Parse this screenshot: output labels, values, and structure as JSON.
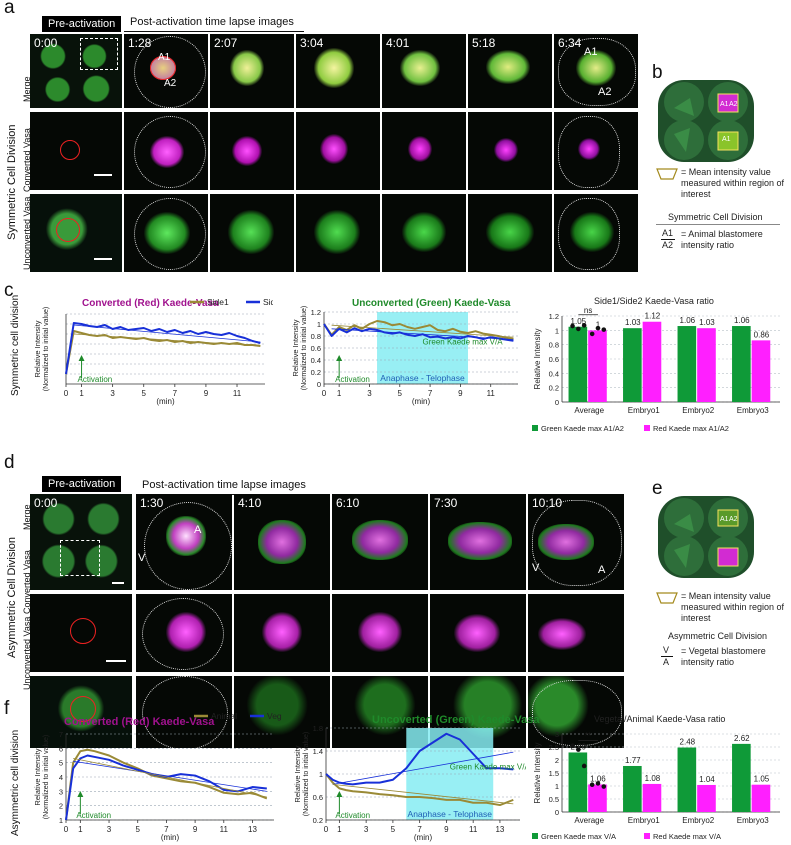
{
  "panel_letters": {
    "a": "a",
    "b": "b",
    "c": "c",
    "d": "d",
    "e": "e",
    "f": "f"
  },
  "colors": {
    "green": "#3dd43d",
    "magenta": "#e01fe0",
    "olive": "#9a8a36",
    "blue": "#1830d8",
    "cyan_band": "#86ecf2",
    "bar_green": "#0f9a38",
    "bar_magenta": "#ff1fff"
  },
  "panel_a": {
    "group_label": "Symmetric Cell Division",
    "pre_activation": "Pre-activation",
    "post_header": "Post-activation time lapse images",
    "row_labels": [
      "Merge",
      "Converted Vasa",
      "Unconverted Vasa"
    ],
    "timestamps": [
      "0:00",
      "1:28",
      "2:07",
      "3:04",
      "4:01",
      "5:18",
      "6:34"
    ],
    "markers": {
      "a1": "A1",
      "a2": "A2"
    }
  },
  "panel_b": {
    "labels": {
      "a1": "A1",
      "a2": "A2"
    },
    "legend_text": "= Mean intensity value measured within region of  interest",
    "division_title": "Symmetric Cell Division",
    "ratio_num": "A1",
    "ratio_den": "A2",
    "ratio_text": "= Animal blastomere intensity ratio"
  },
  "panel_d": {
    "group_label": "Asymmetric Cell Division",
    "pre_activation": "Pre-activation",
    "post_header": "Post-activation time lapse images",
    "row_labels": [
      "Merge",
      "Converted Vasa",
      "Unconverted Vasa"
    ],
    "timestamps": [
      "0:00",
      "1:30",
      "4:10",
      "6:10",
      "7:30",
      "10:10"
    ],
    "markers": {
      "a": "A",
      "v": "V"
    }
  },
  "panel_e": {
    "labels": {
      "a1": "A1",
      "a2": "A2"
    },
    "legend_text": "= Mean intensity value measured within region of  interest",
    "division_title": "Asymmetric Cell Division",
    "ratio_num": "V",
    "ratio_den": "A",
    "ratio_text": "= Vegetal blastomere intensity ratio"
  },
  "panel_c_side_label": "Symmetric cell division",
  "panel_f_side_label": "Asymmetric cell division",
  "chart_data": [
    {
      "id": "c_red",
      "type": "line",
      "title": "Converted (Red) Kaede-Vasa",
      "ylabel": "Relative Intensity (Normalized to initial value)",
      "xlabel": "(min)",
      "xticks": [
        0,
        1,
        3,
        5,
        7,
        9,
        11
      ],
      "xlim": [
        0,
        12.8
      ],
      "ylim": [
        0,
        7
      ],
      "yticks": [],
      "annotation": "Activation",
      "annotation_x": 1,
      "legend": [
        "Side1",
        "Side2"
      ],
      "series": [
        {
          "name": "Side1",
          "color": "olive",
          "x": [
            0,
            0.5,
            1,
            1.5,
            2,
            2.5,
            3,
            3.5,
            4,
            4.5,
            5,
            5.5,
            6,
            6.5,
            7,
            7.5,
            8,
            8.5,
            9,
            9.5,
            10,
            10.5,
            11,
            11.5,
            12,
            12.5
          ],
          "y": [
            1,
            5.3,
            5.1,
            4.9,
            4.8,
            4.9,
            4.6,
            4.7,
            4.6,
            4.5,
            4.6,
            4.4,
            4.3,
            4.4,
            4.2,
            4.3,
            4.1,
            4.2,
            4.1,
            4.0,
            4.1,
            4.0,
            4.1,
            3.9,
            3.9,
            3.8
          ]
        },
        {
          "name": "Side2",
          "color": "blue",
          "x": [
            0,
            0.5,
            1,
            1.5,
            2,
            2.5,
            3,
            3.5,
            4,
            4.5,
            5,
            5.5,
            6,
            6.5,
            7,
            7.5,
            8,
            8.5,
            9,
            9.5,
            10,
            10.5,
            11,
            11.5,
            12,
            12.5
          ],
          "y": [
            1,
            6.1,
            6.0,
            5.8,
            5.7,
            5.9,
            5.5,
            5.7,
            5.4,
            5.5,
            5.6,
            5.3,
            5.5,
            5.2,
            5.4,
            5.1,
            5.3,
            5.0,
            5.2,
            5.0,
            4.9,
            5.1,
            4.8,
            4.6,
            4.3,
            4.1
          ]
        },
        {
          "name": "",
          "color": "blue",
          "fit": true,
          "x": [
            0.5,
            12.5
          ],
          "y": [
            5.9,
            4.2
          ]
        },
        {
          "name": "",
          "color": "olive",
          "fit": true,
          "x": [
            0.5,
            12.5
          ],
          "y": [
            5.0,
            3.8
          ]
        }
      ]
    },
    {
      "id": "c_green",
      "type": "line",
      "title": "Unconverted (Green) Kaede-Vasa",
      "ylabel": "Relative Intensity (Normalized to initial value)",
      "xlabel": "(min)",
      "xticks": [
        0,
        1,
        3,
        5,
        7,
        9,
        11
      ],
      "xlim": [
        0,
        12.8
      ],
      "ylim": [
        0,
        1.2
      ],
      "yticks": [
        0,
        0.2,
        0.4,
        0.6,
        0.8,
        1,
        1.2
      ],
      "band": [
        3.5,
        9.5
      ],
      "band_label": "Anaphase - Telophase",
      "arrow_label": "Green Kaede max V/A",
      "annotation": "Activation",
      "annotation_x": 1,
      "series": [
        {
          "name": "",
          "color": "olive",
          "x": [
            0,
            0.5,
            1,
            1.5,
            2,
            2.5,
            3,
            3.5,
            4,
            4.5,
            5,
            5.5,
            6,
            6.5,
            7,
            7.5,
            8,
            8.5,
            9,
            9.5,
            10,
            10.5,
            11,
            11.5,
            12,
            12.5
          ],
          "y": [
            1,
            0.82,
            0.95,
            0.9,
            0.98,
            0.92,
            1.0,
            1.05,
            1.03,
            0.98,
            1.0,
            0.95,
            0.92,
            0.95,
            0.98,
            0.9,
            0.88,
            0.92,
            0.87,
            0.85,
            0.88,
            0.84,
            0.82,
            0.8,
            0.77,
            0.75
          ]
        },
        {
          "name": "",
          "color": "blue",
          "x": [
            0,
            0.5,
            1,
            1.5,
            2,
            2.5,
            3,
            3.5,
            4,
            4.5,
            5,
            5.5,
            6,
            6.5,
            7,
            7.5,
            8,
            8.5,
            9,
            9.5,
            10,
            10.5,
            11,
            11.5,
            12,
            12.5
          ],
          "y": [
            1,
            0.8,
            0.92,
            0.86,
            0.93,
            0.88,
            0.92,
            0.9,
            0.86,
            0.84,
            0.86,
            0.82,
            0.8,
            0.83,
            0.78,
            0.79,
            0.76,
            0.78,
            0.76,
            0.8,
            0.78,
            0.75,
            0.78,
            0.76,
            0.74,
            0.72
          ]
        },
        {
          "name": "",
          "color": "blue",
          "fit": true,
          "x": [
            0.5,
            12.5
          ],
          "y": [
            0.92,
            0.74
          ]
        },
        {
          "name": "",
          "color": "olive",
          "fit": true,
          "x": [
            0.5,
            12.5
          ],
          "y": [
            0.98,
            0.78
          ]
        }
      ]
    },
    {
      "id": "c_bar",
      "type": "bar",
      "title": "Side1/Side2 Kaede-Vasa ratio",
      "ylabel": "Relative Intensity",
      "ylim": [
        0,
        1.2
      ],
      "yticks": [
        0,
        0.2,
        0.4,
        0.6,
        0.8,
        1,
        1.2
      ],
      "categories": [
        "Average",
        "Embryo1",
        "Embryo2",
        "Embryo3"
      ],
      "series": [
        {
          "name": "Green Kaede max A1/A2",
          "color": "bar_green",
          "values": [
            1.05,
            1.03,
            1.06,
            1.06
          ],
          "labels": [
            "1.05",
            "1.03",
            "1.06",
            "1.06"
          ]
        },
        {
          "name": "Red Kaede max A1/A2",
          "color": "bar_magenta",
          "values": [
            1.0,
            1.12,
            1.03,
            0.86
          ],
          "labels": [
            "1",
            "1.12",
            "1.03",
            "0.86"
          ]
        }
      ],
      "significance": "ns",
      "dots": [
        [
          1.06,
          1.02,
          1.07
        ],
        [
          0.95,
          1.03,
          1.01
        ]
      ]
    },
    {
      "id": "f_red",
      "type": "line",
      "title": "Converted (Red) Kaede-Vasa",
      "ylabel": "Relative Intensity (Normalized to initial value)",
      "xlabel": "(min)",
      "xticks": [
        0,
        1,
        3,
        5,
        7,
        9,
        11,
        13
      ],
      "xlim": [
        0,
        14.5
      ],
      "ylim": [
        1,
        7
      ],
      "yticks": [
        1,
        2,
        3,
        4,
        5,
        6,
        7
      ],
      "annotation": "Activation",
      "annotation_x": 1,
      "legend": [
        "Animal",
        "Vegetal"
      ],
      "series": [
        {
          "name": "Animal",
          "color": "olive",
          "x": [
            0,
            0.5,
            1,
            1.5,
            2,
            3,
            4,
            5,
            6,
            7,
            8,
            9,
            10,
            11,
            12,
            13,
            14
          ],
          "y": [
            1,
            5.0,
            5.8,
            5.9,
            5.8,
            5.5,
            5.0,
            4.6,
            4.1,
            3.9,
            3.7,
            3.6,
            3.3,
            2.9,
            2.8,
            2.9,
            2.5
          ]
        },
        {
          "name": "Vegetal",
          "color": "blue",
          "x": [
            0,
            0.5,
            1,
            1.5,
            2,
            3,
            4,
            5,
            6,
            7,
            8,
            9,
            10,
            11,
            12,
            13,
            14
          ],
          "y": [
            1,
            4.6,
            5.3,
            5.5,
            5.4,
            5.2,
            4.8,
            4.5,
            4.2,
            4.0,
            4.2,
            4.1,
            3.7,
            3.1,
            3.0,
            3.3,
            3.2
          ]
        },
        {
          "name": "",
          "color": "blue",
          "fit": true,
          "x": [
            0.5,
            14
          ],
          "y": [
            5.1,
            3.0
          ]
        },
        {
          "name": "",
          "color": "olive",
          "fit": true,
          "x": [
            0.5,
            14
          ],
          "y": [
            5.3,
            2.6
          ]
        }
      ]
    },
    {
      "id": "f_green",
      "type": "line",
      "title": "Uncoverted (Green) Kaede-Vasa",
      "ylabel": "Relative Intensity (Normalized to initial value)",
      "xlabel": "(min)",
      "xticks": [
        0,
        1,
        3,
        5,
        7,
        9,
        11,
        13
      ],
      "xlim": [
        0,
        14.5
      ],
      "ylim": [
        0.2,
        1.8
      ],
      "yticks": [
        0.2,
        0.6,
        1,
        1.4,
        1.8
      ],
      "band": [
        6,
        12.5
      ],
      "band_label": "Anaphase - Telophase",
      "arrow_label": "Green Kaede max V/A",
      "annotation": "Activation",
      "annotation_x": 1,
      "series": [
        {
          "name": "",
          "color": "olive",
          "x": [
            0,
            0.5,
            1,
            1.5,
            2,
            3,
            4,
            5,
            6,
            7,
            8,
            9,
            10,
            11,
            12,
            13,
            14
          ],
          "y": [
            1,
            0.85,
            0.75,
            0.72,
            0.7,
            0.68,
            0.65,
            0.63,
            0.6,
            0.6,
            0.58,
            0.55,
            0.55,
            0.5,
            0.5,
            0.46,
            0.55
          ]
        },
        {
          "name": "",
          "color": "blue",
          "x": [
            0,
            0.5,
            1,
            1.5,
            2,
            3,
            4,
            5,
            6,
            7,
            8,
            9,
            10,
            11,
            12,
            13,
            14
          ],
          "y": [
            1,
            0.9,
            0.85,
            0.83,
            0.82,
            0.85,
            0.85,
            0.9,
            1.1,
            1.4,
            1.55,
            1.7,
            1.6,
            1.35,
            1.1,
            1.1,
            1.08
          ]
        },
        {
          "name": "",
          "color": "blue",
          "fit": true,
          "x": [
            0.5,
            14
          ],
          "y": [
            0.82,
            1.38
          ]
        },
        {
          "name": "",
          "color": "olive",
          "fit": true,
          "x": [
            0.5,
            14
          ],
          "y": [
            0.82,
            0.48
          ]
        }
      ]
    },
    {
      "id": "f_bar",
      "type": "bar",
      "title": "Vegetal/Animal Kaede-Vasa ratio",
      "ylabel": "Relative Intensity",
      "ylim": [
        0,
        3
      ],
      "yticks": [
        0,
        0.5,
        1,
        1.5,
        2,
        2.5,
        3
      ],
      "categories": [
        "Average",
        "Embryo1",
        "Embryo2",
        "Embryo3"
      ],
      "series": [
        {
          "name": "Green Kaede max V/A",
          "color": "bar_green",
          "values": [
            2.29,
            1.77,
            2.48,
            2.62
          ],
          "labels": [
            "2.29",
            "1.77",
            "2.48",
            "2.62"
          ]
        },
        {
          "name": "Red Kaede max V/A",
          "color": "bar_magenta",
          "values": [
            1.06,
            1.08,
            1.04,
            1.05
          ],
          "labels": [
            "1.06",
            "1.08",
            "1.04",
            "1.05"
          ]
        }
      ],
      "significance": "**",
      "dots": [
        [
          2.55,
          2.4,
          1.77
        ],
        [
          1.05,
          1.1,
          0.98
        ]
      ]
    }
  ]
}
